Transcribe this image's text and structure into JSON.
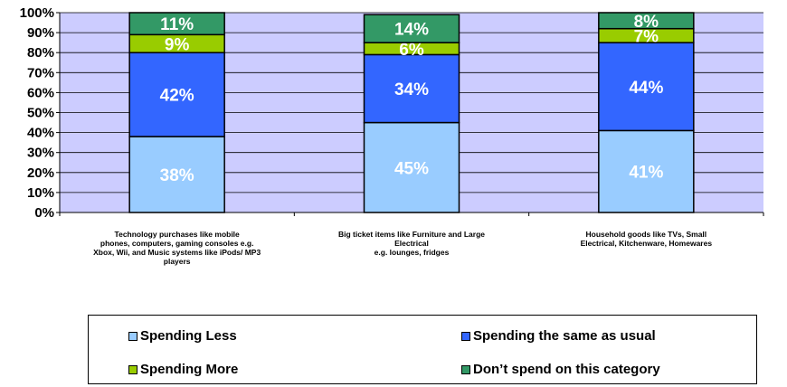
{
  "chart_data": {
    "type": "bar",
    "stacked": true,
    "categories": [
      "Technology purchases like mobile phones, computers, gaming consoles e.g. Xbox, Wii, and Music systems like iPods/ MP3 players",
      "Big ticket items like Furniture and Large Electrical e.g. lounges, fridges",
      "Household goods like TVs, Small Electrical, Kitchenware, Homewares"
    ],
    "category_lines": [
      [
        "Technology purchases like mobile",
        "phones, computers, gaming consoles e.g.",
        "Xbox, Wii, and Music systems like iPods/ MP3",
        "players"
      ],
      [
        "Big ticket items like Furniture and Large Electrical",
        "e.g. lounges, fridges"
      ],
      [
        "Household goods like TVs, Small",
        "Electrical, Kitchenware, Homewares"
      ]
    ],
    "series": [
      {
        "name": "Spending Less",
        "values": [
          38,
          45,
          41
        ],
        "color": "#99ccff",
        "label_color": "#ffffff"
      },
      {
        "name": "Spending the same as usual",
        "values": [
          42,
          34,
          44
        ],
        "color": "#3366ff",
        "label_color": "#ffffff"
      },
      {
        "name": "Spending More",
        "values": [
          9,
          6,
          7
        ],
        "color": "#99cc00",
        "label_color": "#ffffff"
      },
      {
        "name": "Don’t spend on this category",
        "values": [
          11,
          14,
          8
        ],
        "color": "#339966",
        "label_color": "#ffffff"
      }
    ],
    "y_ticks": [
      "0%",
      "10%",
      "20%",
      "30%",
      "40%",
      "50%",
      "60%",
      "70%",
      "80%",
      "90%",
      "100%"
    ],
    "ylim": [
      0,
      100
    ],
    "grid": true,
    "plot_background": "#ccccff",
    "legend_position": "bottom"
  }
}
